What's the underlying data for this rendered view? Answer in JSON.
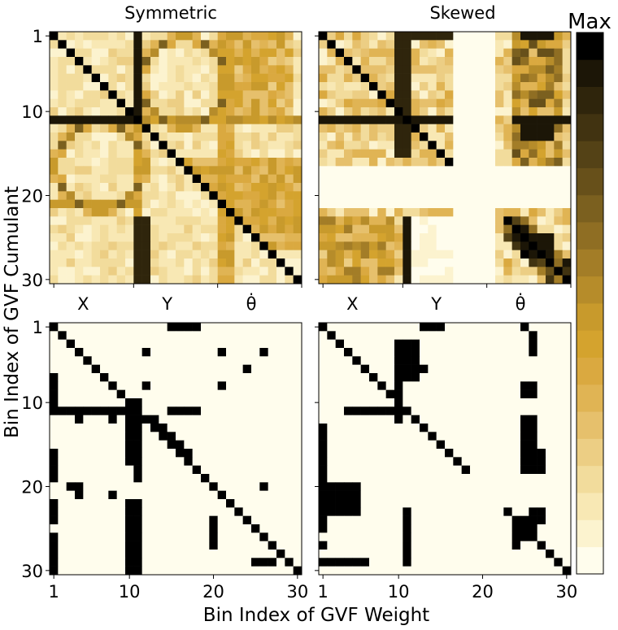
{
  "figure": {
    "ylabel": "Bin Index of GVF Cumulant",
    "xlabel": "Bin Index of GVF Weight",
    "colorbar_label": "Max"
  },
  "chart_data": [
    {
      "type": "heatmap",
      "title": "Symmetric",
      "grid_size": 30,
      "yticks": [
        "1",
        "10",
        "20",
        "30"
      ],
      "xticks_group": [
        "X",
        "Y",
        "θ̇"
      ],
      "value_scale": "0 (cream) to 1 (black = Max)",
      "pattern": "identity diagonal, secondary anti-diagonal; circular arcs centred at (5.5,5.5) and (15.5,15.5); strong line at row/column 10-11; banded structure in Y and θ̇ groups"
    },
    {
      "type": "heatmap",
      "title": "Skewed",
      "grid_size": 30,
      "xticks_group": [
        "X",
        "Y",
        "θ̇"
      ],
      "value_scale": "0 (cream) to 1 (black = Max)",
      "pattern": "diagonal for bins 1-15 and 23-29; empty block for columns 16-22; dense bands in rows 1-16 and 22-30 in X, Y and θ̇ groups"
    },
    {
      "type": "heatmap",
      "title": "",
      "grid_size": 30,
      "xticks": [
        "1",
        "10",
        "20",
        "30"
      ],
      "yticks": [
        "1",
        "10",
        "20",
        "30"
      ],
      "value_scale": "binary (black = selected, cream = not selected)",
      "pattern": "thresholded version of the Symmetric map: diagonal plus arcs and column 10-11 lines"
    },
    {
      "type": "heatmap",
      "title": "",
      "grid_size": 30,
      "xticks": [
        "1",
        "10",
        "20",
        "30"
      ],
      "value_scale": "binary (black = selected, cream = not selected)",
      "pattern": "thresholded version of the Skewed map: diagonal plus blocks in the X, Y and θ̇ groups"
    }
  ],
  "colorbar": {
    "levels": 20,
    "max_label": "Max",
    "colors": [
      "#fffded",
      "#fcf3cf",
      "#f8e8b4",
      "#f2dc9c",
      "#ecce84",
      "#e6c06c",
      "#e0b454",
      "#daa940",
      "#d4a32e",
      "#c89a2c",
      "#b68c2a",
      "#a37d27",
      "#8f6e23",
      "#7b601f",
      "#67501a",
      "#544216",
      "#413311",
      "#2f250c",
      "#1c1607",
      "#000000"
    ]
  }
}
